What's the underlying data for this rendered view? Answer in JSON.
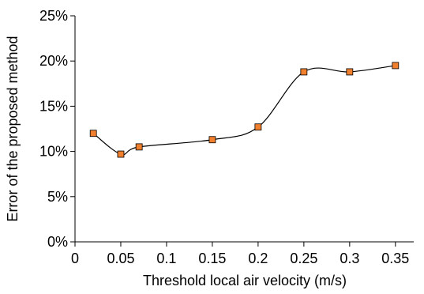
{
  "chart_data": {
    "type": "scatter",
    "xlabel": "Threshold local air velocity (m/s)",
    "ylabel": "Error of the proposed method",
    "xlim": [
      0,
      0.37
    ],
    "ylim": [
      0,
      25
    ],
    "x_ticks": [
      "0",
      "0.05",
      "0.1",
      "0.15",
      "0.2",
      "0.25",
      "0.3",
      "0.35"
    ],
    "y_ticks": [
      "0%",
      "5%",
      "10%",
      "15%",
      "20%",
      "25%"
    ],
    "grid": false,
    "legend": "none",
    "line_style": "smoothed",
    "series": [
      {
        "x": [
          0.02,
          0.05,
          0.07,
          0.15,
          0.2,
          0.25,
          0.3,
          0.35
        ],
        "y": [
          12.0,
          9.7,
          10.5,
          11.3,
          12.7,
          18.8,
          18.8,
          19.5
        ],
        "marker_color": "#F07F2E",
        "line_color": "#000000"
      }
    ]
  }
}
